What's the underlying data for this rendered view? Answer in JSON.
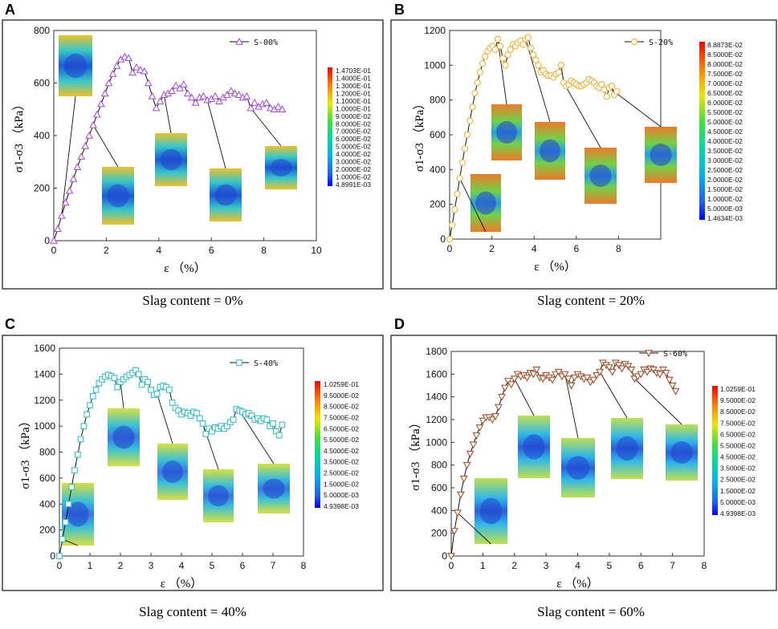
{
  "chart_data": [
    {
      "panel": "A",
      "type": "line",
      "caption": "Slag content = 0%",
      "xlabel": "ε （%）",
      "ylabel": "σ1-σ3 （kPa）",
      "xlim": [
        0,
        10
      ],
      "ylim": [
        0,
        800
      ],
      "xticks": [
        0,
        2,
        4,
        6,
        8,
        10
      ],
      "yticks": [
        0,
        200,
        400,
        600,
        800
      ],
      "series": [
        {
          "name": "S-00%",
          "color": "#a347d8",
          "marker": "triangle",
          "x": [
            0.0,
            0.15,
            0.3,
            0.45,
            0.6,
            0.75,
            0.9,
            1.05,
            1.2,
            1.35,
            1.5,
            1.65,
            1.8,
            1.95,
            2.1,
            2.25,
            2.4,
            2.55,
            2.7,
            2.85,
            3.0,
            3.15,
            3.3,
            3.45,
            3.6,
            3.75,
            3.9,
            4.05,
            4.2,
            4.35,
            4.5,
            4.65,
            4.8,
            4.95,
            5.1,
            5.25,
            5.4,
            5.55,
            5.7,
            5.85,
            6.0,
            6.15,
            6.3,
            6.45,
            6.6,
            6.75,
            6.9,
            7.05,
            7.2,
            7.35,
            7.5,
            7.65,
            7.8,
            7.95,
            8.1,
            8.25,
            8.4,
            8.55,
            8.7
          ],
          "y": [
            0,
            45,
            95,
            145,
            190,
            235,
            280,
            320,
            360,
            400,
            440,
            480,
            520,
            560,
            600,
            635,
            665,
            690,
            700,
            695,
            640,
            660,
            650,
            645,
            600,
            550,
            505,
            530,
            555,
            560,
            570,
            590,
            580,
            595,
            560,
            545,
            525,
            545,
            550,
            535,
            540,
            550,
            530,
            545,
            555,
            570,
            560,
            555,
            545,
            550,
            505,
            525,
            510,
            520,
            525,
            505,
            500,
            510,
            500
          ]
        }
      ],
      "colorbar": [
        "1.4703E-01",
        "1.4000E-01",
        "1.3000E-01",
        "1.2000E-01",
        "1.1000E-01",
        "1.0000E-01",
        "9.0000E-02",
        "8.0000E-02",
        "7.0000E-02",
        "6.0000E-02",
        "5.0000E-02",
        "4.0000E-02",
        "3.0000E-02",
        "2.0000E-02",
        "1.0000E-02",
        "4.8991E-03"
      ]
    },
    {
      "panel": "B",
      "type": "line",
      "caption": "Slag content = 20%",
      "xlabel": "ε （%）",
      "ylabel": "σ1-σ3 （kPa）",
      "xlim": [
        0,
        10
      ],
      "ylim": [
        0,
        1200
      ],
      "xticks": [
        0,
        2,
        4,
        6,
        8
      ],
      "yticks": [
        0,
        200,
        400,
        600,
        800,
        1000,
        1200
      ],
      "series": [
        {
          "name": "S-20%",
          "color": "#e8b33a",
          "marker": "circle",
          "x": [
            0.0,
            0.12,
            0.24,
            0.36,
            0.48,
            0.6,
            0.72,
            0.84,
            0.96,
            1.08,
            1.2,
            1.32,
            1.44,
            1.56,
            1.68,
            1.8,
            1.92,
            2.04,
            2.16,
            2.28,
            2.4,
            2.52,
            2.64,
            2.76,
            2.88,
            3.0,
            3.12,
            3.24,
            3.36,
            3.48,
            3.6,
            3.72,
            3.84,
            3.96,
            4.08,
            4.2,
            4.32,
            4.44,
            4.56,
            4.68,
            4.8,
            4.92,
            5.04,
            5.16,
            5.28,
            5.4,
            5.52,
            5.64,
            5.76,
            5.88,
            6.0,
            6.12,
            6.24,
            6.36,
            6.48,
            6.6,
            6.72,
            6.84,
            6.96,
            7.08,
            7.2,
            7.32,
            7.44,
            7.56,
            7.68,
            7.8,
            7.92
          ],
          "y": [
            0,
            80,
            170,
            260,
            350,
            440,
            520,
            600,
            680,
            760,
            840,
            900,
            960,
            1010,
            1050,
            1080,
            1100,
            1110,
            1090,
            1150,
            1110,
            1040,
            1000,
            1060,
            1090,
            1120,
            1110,
            1130,
            1140,
            1120,
            1150,
            1160,
            1100,
            1060,
            1030,
            1000,
            960,
            970,
            950,
            940,
            940,
            930,
            950,
            960,
            1000,
            900,
            880,
            890,
            910,
            900,
            890,
            880,
            880,
            890,
            900,
            920,
            910,
            900,
            880,
            870,
            890,
            860,
            820,
            870,
            880,
            830,
            850
          ]
        }
      ],
      "colorbar": [
        "8.8873E-02",
        "8.5000E-02",
        "8.0000E-02",
        "7.5000E-02",
        "7.0000E-02",
        "6.5000E-02",
        "6.0000E-02",
        "5.5000E-02",
        "5.0000E-02",
        "4.5000E-02",
        "4.0000E-02",
        "3.5000E-02",
        "3.0000E-02",
        "2.5000E-02",
        "2.0000E-02",
        "1.5000E-02",
        "1.0000E-02",
        "5.0000E-03",
        "1.4634E-03"
      ]
    },
    {
      "panel": "C",
      "type": "line",
      "caption": "Slag content = 40%",
      "xlabel": "ε （%）",
      "ylabel": "σ1-σ3 （kPa）",
      "xlim": [
        0,
        8
      ],
      "ylim": [
        0,
        1600
      ],
      "xticks": [
        0,
        1,
        2,
        3,
        4,
        5,
        6,
        7,
        8
      ],
      "yticks": [
        0,
        200,
        400,
        600,
        800,
        1000,
        1200,
        1400,
        1600
      ],
      "series": [
        {
          "name": "S-40%",
          "color": "#3bbfc4",
          "marker": "square",
          "x": [
            0.0,
            0.1,
            0.2,
            0.3,
            0.4,
            0.5,
            0.6,
            0.7,
            0.8,
            0.9,
            1.0,
            1.1,
            1.2,
            1.3,
            1.4,
            1.5,
            1.6,
            1.7,
            1.8,
            1.9,
            2.0,
            2.1,
            2.2,
            2.3,
            2.4,
            2.5,
            2.6,
            2.7,
            2.8,
            2.9,
            3.0,
            3.1,
            3.2,
            3.3,
            3.4,
            3.5,
            3.6,
            3.7,
            3.8,
            3.9,
            4.0,
            4.1,
            4.2,
            4.3,
            4.4,
            4.5,
            4.6,
            4.7,
            4.8,
            4.9,
            5.0,
            5.1,
            5.2,
            5.3,
            5.4,
            5.5,
            5.6,
            5.7,
            5.8,
            5.9,
            6.0,
            6.1,
            6.2,
            6.3,
            6.4,
            6.5,
            6.6,
            6.7,
            6.8,
            6.9,
            7.0,
            7.1,
            7.2,
            7.3
          ],
          "y": [
            0,
            130,
            260,
            400,
            530,
            660,
            780,
            900,
            1000,
            1090,
            1160,
            1230,
            1280,
            1330,
            1360,
            1380,
            1395,
            1385,
            1370,
            1300,
            1340,
            1360,
            1380,
            1395,
            1410,
            1430,
            1400,
            1320,
            1360,
            1340,
            1280,
            1240,
            1250,
            1300,
            1310,
            1300,
            1280,
            1180,
            1140,
            1120,
            1090,
            1110,
            1100,
            1080,
            1110,
            1100,
            1060,
            1020,
            940,
            980,
            960,
            990,
            980,
            1000,
            980,
            1000,
            1030,
            1050,
            1130,
            1120,
            1110,
            1090,
            1100,
            1080,
            1050,
            1060,
            1040,
            1060,
            1050,
            1000,
            1020,
            960,
            930,
            1010
          ]
        }
      ],
      "colorbar": [
        "1.0259E-01",
        "9.5000E-02",
        "8.5000E-02",
        "7.5000E-02",
        "6.5000E-02",
        "5.5000E-02",
        "4.5000E-02",
        "3.5000E-02",
        "2.5000E-02",
        "1.5000E-02",
        "5.0000E-03",
        "4.9398E-03"
      ]
    },
    {
      "panel": "D",
      "type": "line",
      "caption": "Slag content = 60%",
      "xlabel": "ε （%）",
      "ylabel": "σ1-σ3 （kPa）",
      "xlim": [
        0,
        8
      ],
      "ylim": [
        0,
        1800
      ],
      "xticks": [
        0,
        1,
        2,
        3,
        4,
        5,
        6,
        7,
        8
      ],
      "yticks": [
        0,
        200,
        400,
        600,
        800,
        1000,
        1200,
        1400,
        1600,
        1800
      ],
      "series": [
        {
          "name": "S-60%",
          "color": "#a0522d",
          "marker": "triangle-down",
          "x": [
            0.0,
            0.1,
            0.2,
            0.3,
            0.4,
            0.5,
            0.6,
            0.7,
            0.8,
            0.9,
            1.0,
            1.1,
            1.2,
            1.3,
            1.4,
            1.5,
            1.6,
            1.7,
            1.8,
            1.9,
            2.0,
            2.1,
            2.2,
            2.3,
            2.4,
            2.5,
            2.6,
            2.7,
            2.8,
            2.9,
            3.0,
            3.1,
            3.2,
            3.3,
            3.4,
            3.5,
            3.6,
            3.7,
            3.8,
            3.9,
            4.0,
            4.1,
            4.2,
            4.3,
            4.4,
            4.5,
            4.6,
            4.7,
            4.8,
            4.9,
            5.0,
            5.1,
            5.2,
            5.3,
            5.4,
            5.5,
            5.6,
            5.7,
            5.8,
            5.9,
            6.0,
            6.1,
            6.2,
            6.3,
            6.4,
            6.5,
            6.6,
            6.7,
            6.8,
            6.9,
            7.0,
            7.1
          ],
          "y": [
            0,
            220,
            380,
            540,
            680,
            800,
            900,
            980,
            1060,
            1130,
            1190,
            1220,
            1220,
            1200,
            1230,
            1310,
            1400,
            1480,
            1540,
            1510,
            1560,
            1600,
            1580,
            1590,
            1570,
            1610,
            1600,
            1640,
            1570,
            1560,
            1590,
            1570,
            1550,
            1600,
            1620,
            1580,
            1600,
            1560,
            1500,
            1570,
            1600,
            1580,
            1560,
            1570,
            1530,
            1550,
            1590,
            1620,
            1700,
            1680,
            1660,
            1620,
            1700,
            1680,
            1650,
            1690,
            1670,
            1640,
            1560,
            1580,
            1600,
            1640,
            1620,
            1650,
            1640,
            1610,
            1600,
            1640,
            1610,
            1550,
            1500,
            1450
          ]
        }
      ],
      "colorbar": [
        "1.0259E-01",
        "9.5000E-02",
        "8.5000E-02",
        "7.5000E-02",
        "6.5000E-02",
        "5.5000E-02",
        "4.5000E-02",
        "3.5000E-02",
        "2.5000E-02",
        "1.5000E-02",
        "5.0000E-03",
        "4.9398E-03"
      ]
    }
  ]
}
